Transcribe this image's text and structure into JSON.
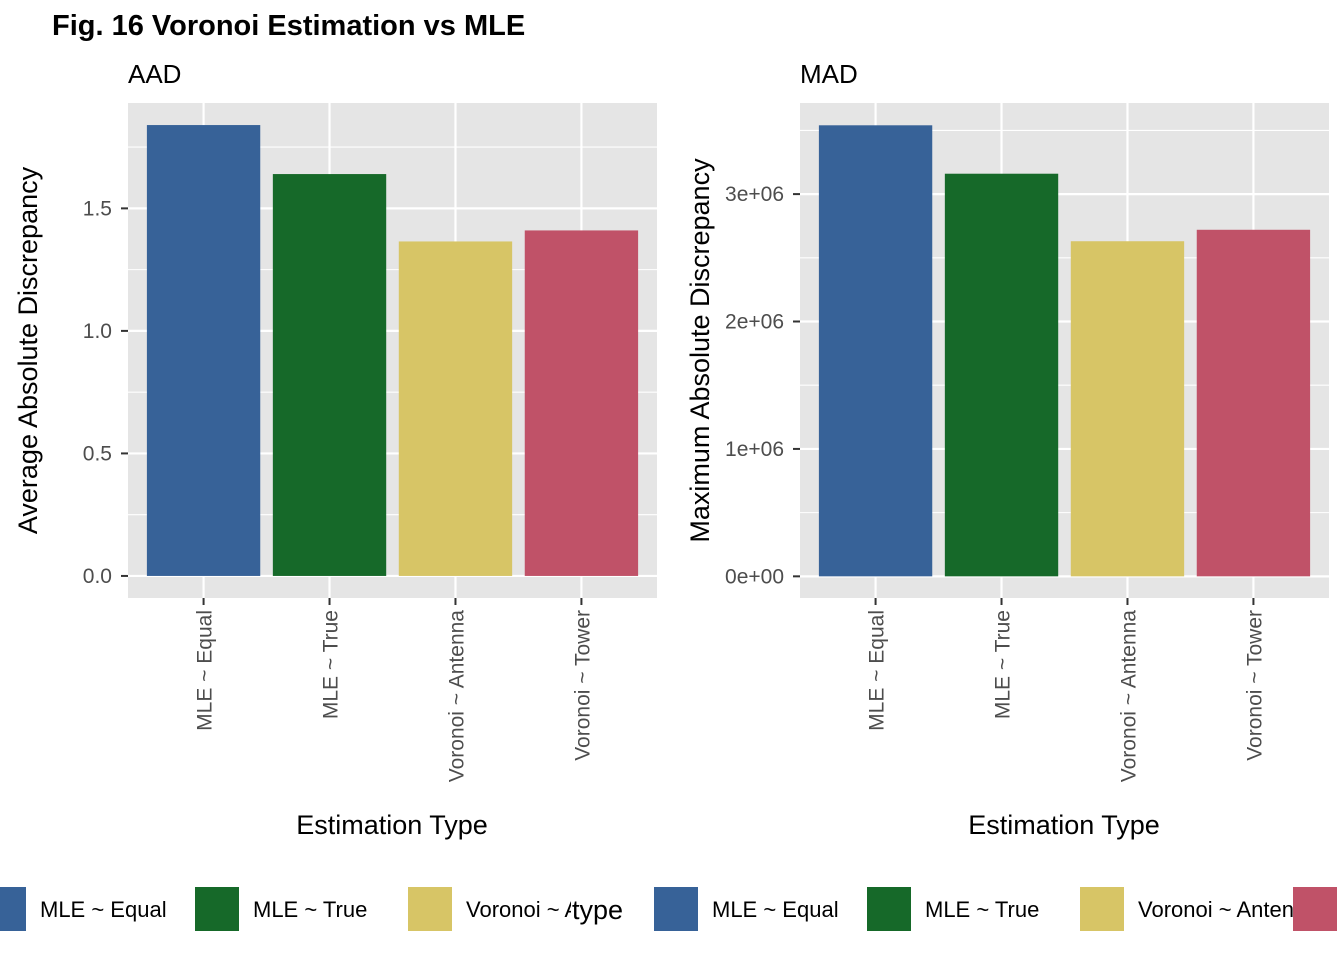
{
  "title": "Fig. 16 Voronoi Estimation vs MLE",
  "colors": {
    "panel_bg": "#e5e5e5",
    "grid": "#ffffff",
    "tick_text": "#4d4d4d",
    "tick_mark": "#333333"
  },
  "chart_data": [
    {
      "type": "bar",
      "title": "AAD",
      "xlabel": "Estimation Type",
      "ylabel": "Average Absolute Discrepancy",
      "categories": [
        "MLE ~ Equal",
        "MLE ~ True",
        "Voronoi ~ Antenna",
        "Voronoi ~ Tower"
      ],
      "values": [
        1.84,
        1.64,
        1.365,
        1.41
      ],
      "ylim": [
        -0.09,
        1.93
      ],
      "yticks": [
        0.0,
        0.5,
        1.0,
        1.5
      ],
      "ytick_labels": [
        "0.0",
        "0.5",
        "1.0",
        "1.5"
      ],
      "grid": true
    },
    {
      "type": "bar",
      "title": "MAD",
      "xlabel": "Estimation Type",
      "ylabel": "Maximum Absolute Discrepancy",
      "categories": [
        "MLE ~ Equal",
        "MLE ~ True",
        "Voronoi ~ Antenna",
        "Voronoi ~ Tower"
      ],
      "values": [
        3540000,
        3160000,
        2630000,
        2720000
      ],
      "ylim": [
        -170000,
        3715000
      ],
      "yticks": [
        0,
        1000000,
        2000000,
        3000000
      ],
      "ytick_labels": [
        "0e+00",
        "1e+06",
        "2e+06",
        "3e+06"
      ],
      "grid": true
    }
  ],
  "legend": {
    "title": "type",
    "items": [
      {
        "label": "MLE ~ Equal",
        "color": "#376298"
      },
      {
        "label": "MLE ~ True",
        "color": "#166929"
      },
      {
        "label": "Voronoi ~ Antenna",
        "color": "#d7c566"
      },
      {
        "label": "Voronoi ~ Tower",
        "color": "#c05268"
      }
    ]
  }
}
